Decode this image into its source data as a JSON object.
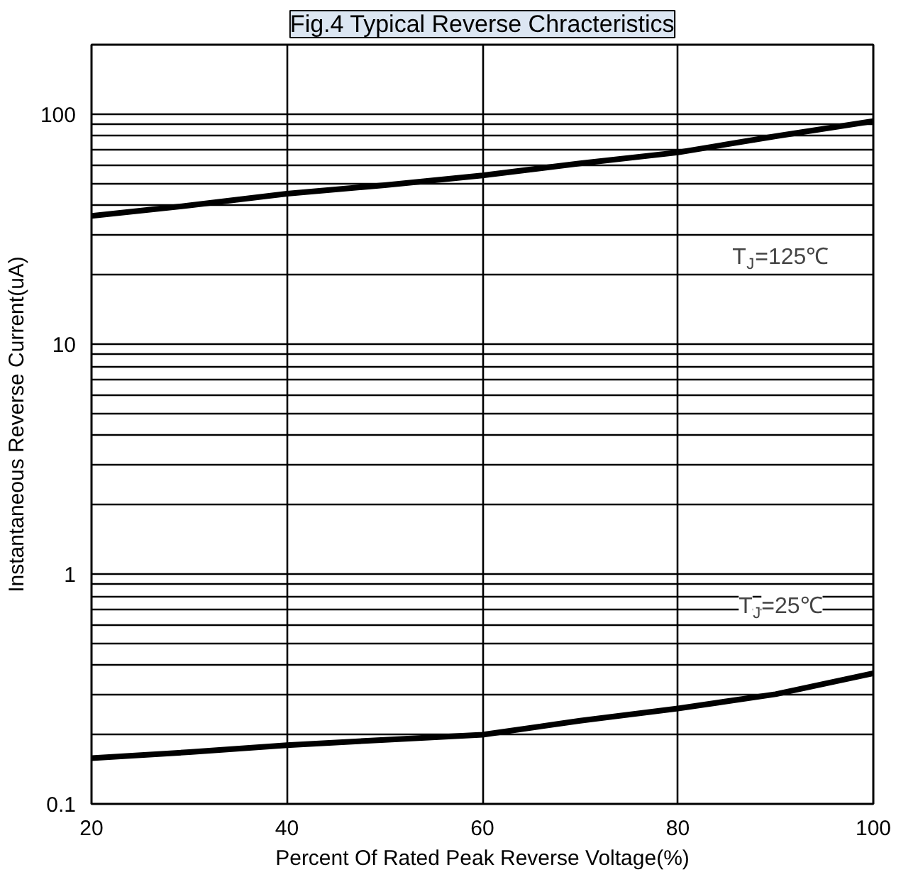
{
  "chart_data": {
    "type": "line",
    "title": "Fig.4 Typical Reverse Chracteristics",
    "xlabel": "Percent Of Rated Peak Reverse Voltage(%)",
    "ylabel": "Instantaneous Reverse Current(uA)",
    "series": [
      {
        "color": "#000000",
        "x": [
          20,
          30,
          40,
          50,
          60,
          70,
          80,
          90,
          100
        ],
        "values": [
          36,
          40,
          45,
          49,
          54,
          61,
          68,
          80,
          93
        ]
      },
      {
        "color": "#000000",
        "x": [
          20,
          30,
          40,
          50,
          60,
          70,
          80,
          90,
          100
        ],
        "values": [
          0.158,
          0.168,
          0.18,
          0.19,
          0.2,
          0.23,
          0.26,
          0.3,
          0.37
        ]
      }
    ],
    "annotations": [
      "T$_{J}$=125℃",
      "T$_{J}$=25℃"
    ],
    "log": "y",
    "xlim": [
      20,
      100
    ],
    "xticks": [
      20,
      40,
      60,
      80,
      100
    ],
    "ylim": [
      0.1,
      200
    ],
    "yticks": [
      0.1,
      {
        "value": 0.2,
        "label": null
      },
      {
        "value": 0.3,
        "label": null
      },
      {
        "value": 0.4,
        "label": null
      },
      {
        "value": 0.5,
        "label": null
      },
      {
        "value": 0.6,
        "label": null
      },
      {
        "value": 0.7,
        "label": null
      },
      {
        "value": 0.8,
        "label": null
      },
      {
        "value": 0.9,
        "label": null
      },
      1,
      {
        "value": 2,
        "label": null
      },
      {
        "value": 3,
        "label": null
      },
      {
        "value": 4,
        "label": null
      },
      {
        "value": 5,
        "label": null
      },
      {
        "value": 6,
        "label": null
      },
      {
        "value": 7,
        "label": null
      },
      {
        "value": 8,
        "label": null
      },
      {
        "value": 9,
        "label": null
      },
      10,
      {
        "value": 20,
        "label": null
      },
      {
        "value": 30,
        "label": null
      },
      {
        "value": 40,
        "label": null
      },
      {
        "value": 50,
        "label": null
      },
      {
        "value": 60,
        "label": null
      },
      {
        "value": 70,
        "label": null
      },
      {
        "value": 80,
        "label": null
      },
      {
        "value": 90,
        "label": null
      },
      100
    ],
    "grid": true,
    "line_style": "solid"
  }
}
